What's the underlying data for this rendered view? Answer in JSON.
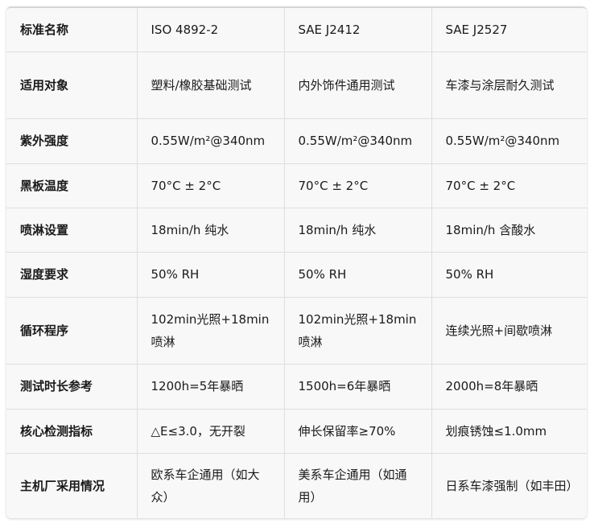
{
  "table": {
    "header": [
      "标准名称",
      "ISO 4892-2",
      "SAE J2412",
      "SAE J2527"
    ],
    "rows": [
      {
        "label": "适用对象",
        "cells": [
          "塑料/橡胶基础测试",
          "内外饰件通用测试",
          "车漆与涂层耐久测试"
        ]
      },
      {
        "label": "紫外强度",
        "cells": [
          "0.55W/m²@340nm",
          "0.55W/m²@340nm",
          "0.55W/m²@340nm"
        ]
      },
      {
        "label": "黑板温度",
        "cells": [
          "70°C ± 2°C",
          "70°C ± 2°C",
          "70°C ± 2°C"
        ]
      },
      {
        "label": "喷淋设置",
        "cells": [
          "18min/h 纯水",
          "18min/h 纯水",
          "18min/h 含酸水"
        ]
      },
      {
        "label": "湿度要求",
        "cells": [
          "50% RH",
          "50% RH",
          "50% RH"
        ]
      },
      {
        "label": "循环程序",
        "cells": [
          "102min光照+18min喷淋",
          "102min光照+18min喷淋",
          "连续光照+间歇喷淋"
        ]
      },
      {
        "label": "测试时长参考",
        "cells": [
          "1200h=5年暴晒",
          "1500h=6年暴晒",
          "2000h=8年暴晒"
        ]
      },
      {
        "label": "核心检测指标",
        "cells": [
          "△E≤3.0，无开裂",
          "伸长保留率≥70%",
          "划痕锈蚀≤1.0mm"
        ]
      },
      {
        "label": "主机厂采用情况",
        "cells": [
          "欧系车企通用（如大众）",
          "美系车企通用（如通用）",
          "日系车漆强制（如丰田）"
        ]
      }
    ]
  }
}
